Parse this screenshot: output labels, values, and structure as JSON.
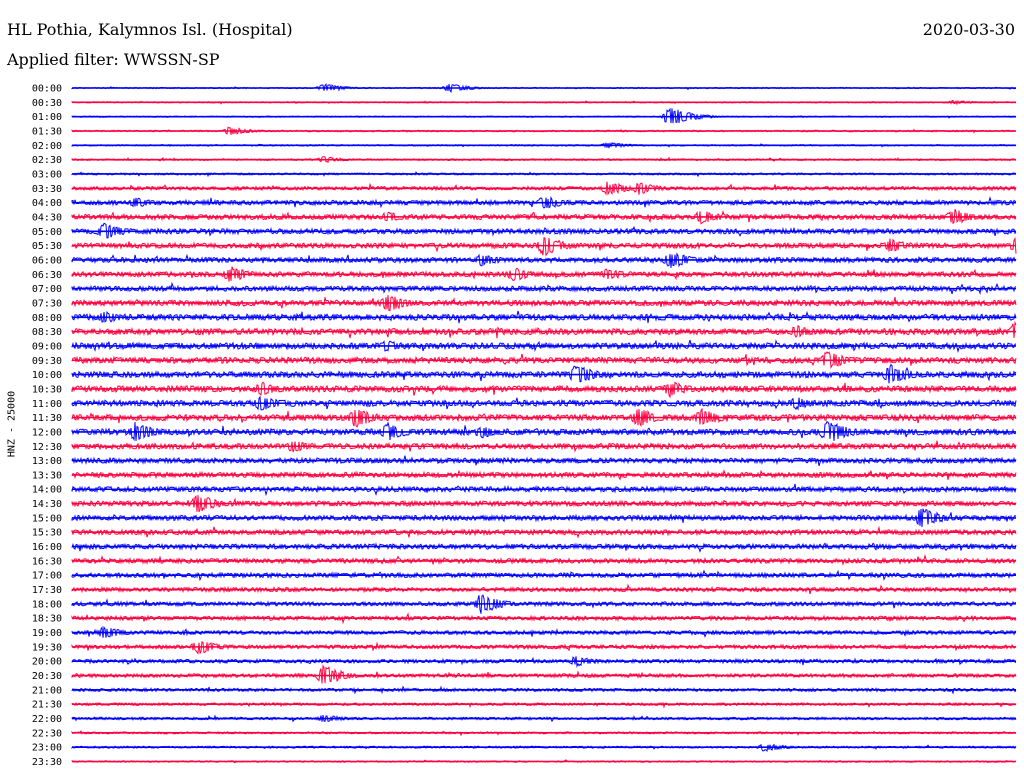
{
  "header": {
    "station": "HL Pothia, Kalymnos Isl. (Hospital)",
    "date": "2020-03-30",
    "filter": "Applied filter: WWSSN-SP"
  },
  "chart_data": {
    "type": "line",
    "title": "HL Pothia, Kalymnos Isl. (Hospital)",
    "subtitle": "Applied filter: WWSSN-SP",
    "date": "2020-03-30",
    "ylabel": "HNZ - 25000",
    "xlabel": "",
    "grid": false,
    "rows": [
      "00:00",
      "00:30",
      "01:00",
      "01:30",
      "02:00",
      "02:30",
      "03:00",
      "03:30",
      "04:00",
      "04:30",
      "05:00",
      "05:30",
      "06:00",
      "06:30",
      "07:00",
      "07:30",
      "08:00",
      "08:30",
      "09:00",
      "09:30",
      "10:00",
      "10:30",
      "11:00",
      "11:30",
      "12:00",
      "12:30",
      "13:00",
      "13:30",
      "14:00",
      "14:30",
      "15:00",
      "15:30",
      "16:00",
      "16:30",
      "17:00",
      "17:30",
      "18:00",
      "18:30",
      "19:00",
      "19:30",
      "20:00",
      "20:30",
      "21:00",
      "21:30",
      "22:00",
      "22:30",
      "23:00",
      "23:30"
    ],
    "noise_level": [
      0.5,
      0.5,
      0.5,
      0.6,
      0.6,
      0.7,
      0.8,
      1.4,
      1.8,
      2.0,
      2.0,
      2.0,
      2.0,
      2.0,
      2.0,
      2.2,
      2.4,
      2.4,
      2.4,
      2.4,
      2.4,
      2.4,
      2.4,
      2.4,
      2.4,
      2.2,
      2.0,
      2.0,
      2.0,
      2.0,
      2.0,
      2.0,
      2.0,
      1.8,
      1.8,
      1.6,
      1.6,
      1.6,
      1.5,
      1.5,
      1.4,
      1.4,
      1.2,
      1.0,
      1.0,
      0.8,
      0.8,
      0.6
    ],
    "events": [
      {
        "row": 0,
        "minute": 8,
        "amp": 4
      },
      {
        "row": 0,
        "minute": 12,
        "amp": 4
      },
      {
        "row": 1,
        "minute": 28,
        "amp": 2
      },
      {
        "row": 2,
        "minute": 19,
        "amp": 10
      },
      {
        "row": 3,
        "minute": 5,
        "amp": 4
      },
      {
        "row": 4,
        "minute": 17,
        "amp": 3
      },
      {
        "row": 5,
        "minute": 8,
        "amp": 3
      },
      {
        "row": 7,
        "minute": 17,
        "amp": 7
      },
      {
        "row": 7,
        "minute": 18,
        "amp": 6
      },
      {
        "row": 8,
        "minute": 15,
        "amp": 7
      },
      {
        "row": 8,
        "minute": 2,
        "amp": 5
      },
      {
        "row": 9,
        "minute": 20,
        "amp": 7
      },
      {
        "row": 9,
        "minute": 28,
        "amp": 8
      },
      {
        "row": 9,
        "minute": 10,
        "amp": 5
      },
      {
        "row": 10,
        "minute": 1,
        "amp": 8
      },
      {
        "row": 11,
        "minute": 15,
        "amp": 10
      },
      {
        "row": 11,
        "minute": 26,
        "amp": 7
      },
      {
        "row": 11,
        "minute": 30,
        "amp": 8
      },
      {
        "row": 12,
        "minute": 13,
        "amp": 6
      },
      {
        "row": 12,
        "minute": 19,
        "amp": 9
      },
      {
        "row": 13,
        "minute": 5,
        "amp": 8
      },
      {
        "row": 13,
        "minute": 14,
        "amp": 7
      },
      {
        "row": 13,
        "minute": 17,
        "amp": 6
      },
      {
        "row": 15,
        "minute": 10,
        "amp": 9
      },
      {
        "row": 16,
        "minute": 1,
        "amp": 6
      },
      {
        "row": 17,
        "minute": 23,
        "amp": 6
      },
      {
        "row": 17,
        "minute": 30,
        "amp": 11
      },
      {
        "row": 18,
        "minute": 10,
        "amp": 6
      },
      {
        "row": 19,
        "minute": 24,
        "amp": 9
      },
      {
        "row": 20,
        "minute": 16,
        "amp": 10
      },
      {
        "row": 20,
        "minute": 26,
        "amp": 10
      },
      {
        "row": 21,
        "minute": 6,
        "amp": 7
      },
      {
        "row": 21,
        "minute": 19,
        "amp": 8
      },
      {
        "row": 22,
        "minute": 6,
        "amp": 8
      },
      {
        "row": 22,
        "minute": 23,
        "amp": 6
      },
      {
        "row": 23,
        "minute": 9,
        "amp": 10
      },
      {
        "row": 23,
        "minute": 18,
        "amp": 9
      },
      {
        "row": 23,
        "minute": 20,
        "amp": 9
      },
      {
        "row": 24,
        "minute": 2,
        "amp": 9
      },
      {
        "row": 24,
        "minute": 10,
        "amp": 9
      },
      {
        "row": 24,
        "minute": 13,
        "amp": 6
      },
      {
        "row": 24,
        "minute": 24,
        "amp": 12
      },
      {
        "row": 25,
        "minute": 7,
        "amp": 6
      },
      {
        "row": 29,
        "minute": 4,
        "amp": 9
      },
      {
        "row": 30,
        "minute": 27,
        "amp": 10
      },
      {
        "row": 36,
        "minute": 13,
        "amp": 10
      },
      {
        "row": 38,
        "minute": 1,
        "amp": 6
      },
      {
        "row": 39,
        "minute": 4,
        "amp": 7
      },
      {
        "row": 40,
        "minute": 16,
        "amp": 5
      },
      {
        "row": 41,
        "minute": 8,
        "amp": 10
      },
      {
        "row": 44,
        "minute": 8,
        "amp": 4
      },
      {
        "row": 46,
        "minute": 22,
        "amp": 4
      }
    ],
    "colors": [
      "#0000ff",
      "#ff0040"
    ]
  }
}
